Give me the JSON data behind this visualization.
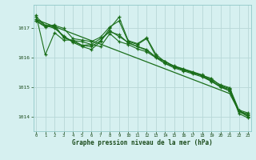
{
  "xlabel": "Graphe pression niveau de la mer (hPa)",
  "hours": [
    0,
    1,
    2,
    3,
    4,
    5,
    6,
    7,
    8,
    9,
    10,
    11,
    12,
    13,
    14,
    15,
    16,
    17,
    18,
    19,
    20,
    21,
    22,
    23
  ],
  "series": [
    [
      1017.4,
      1017.1,
      1017.1,
      1017.0,
      1016.65,
      1016.6,
      1016.55,
      1016.7,
      1017.05,
      1017.25,
      1016.55,
      1016.45,
      1016.65,
      1016.05,
      1015.8,
      1015.7,
      1015.6,
      1015.5,
      1015.4,
      1015.3,
      1015.05,
      1014.95,
      1014.1,
      1013.95
    ],
    [
      1017.45,
      1016.1,
      1016.85,
      1016.6,
      1016.6,
      1016.42,
      1016.45,
      1016.38,
      1016.82,
      1016.55,
      1016.45,
      1016.3,
      1016.2,
      1016.0,
      1015.8,
      1015.65,
      1015.55,
      1015.45,
      1015.35,
      1015.2,
      1015.0,
      1014.87,
      1014.18,
      1014.0
    ],
    [
      1017.25,
      1017.05,
      1017.12,
      1016.68,
      1016.58,
      1016.55,
      1016.45,
      1016.65,
      1016.88,
      1016.78,
      1016.5,
      1016.38,
      1016.28,
      1016.02,
      1015.88,
      1015.68,
      1015.58,
      1015.48,
      1015.38,
      1015.2,
      1015.02,
      1014.87,
      1014.18,
      1014.08
    ],
    [
      1017.3,
      1017.1,
      1017.0,
      1016.75,
      1016.52,
      1016.38,
      1016.28,
      1016.55,
      1017.0,
      1017.38,
      1016.58,
      1016.48,
      1016.68,
      1016.12,
      1015.85,
      1015.72,
      1015.62,
      1015.52,
      1015.42,
      1015.25,
      1015.08,
      1014.98,
      1014.22,
      1014.12
    ],
    [
      1017.25,
      1017.07,
      1017.05,
      1016.7,
      1016.55,
      1016.42,
      1016.38,
      1016.58,
      1016.92,
      1016.72,
      1016.52,
      1016.38,
      1016.25,
      1016.02,
      1015.88,
      1015.7,
      1015.6,
      1015.5,
      1015.4,
      1015.22,
      1015.02,
      1014.92,
      1014.2,
      1014.05
    ]
  ],
  "trend": [
    1017.3,
    1017.18,
    1017.06,
    1016.94,
    1016.82,
    1016.7,
    1016.58,
    1016.46,
    1016.34,
    1016.22,
    1016.1,
    1015.98,
    1015.86,
    1015.74,
    1015.62,
    1015.5,
    1015.38,
    1015.26,
    1015.14,
    1015.02,
    1014.9,
    1014.78,
    1014.18,
    1014.0
  ],
  "line_color": "#1a6e1a",
  "bg_color": "#d6f0f0",
  "grid_color": "#b8d8d8",
  "ylim": [
    1013.5,
    1017.8
  ],
  "yticks": [
    1014,
    1015,
    1016,
    1017
  ]
}
